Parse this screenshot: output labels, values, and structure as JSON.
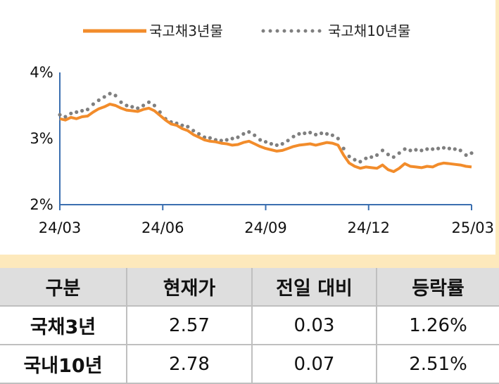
{
  "chart_data": {
    "type": "line",
    "legend": [
      "국고채3년물",
      "국고채10년물"
    ],
    "legend_position": "top",
    "x_ticks": [
      "24/03",
      "24/06",
      "24/09",
      "24/12",
      "25/03"
    ],
    "y_ticks": [
      "4%",
      "3%",
      "2%"
    ],
    "ylim": [
      2,
      4
    ],
    "x_range": [
      "2024-03",
      "2025-03"
    ],
    "grid": false,
    "series": [
      {
        "name": "국고채3년물",
        "color": "#f28c2b",
        "style": "solid",
        "values": [
          3.3,
          3.28,
          3.32,
          3.3,
          3.33,
          3.34,
          3.4,
          3.45,
          3.48,
          3.52,
          3.5,
          3.46,
          3.43,
          3.42,
          3.41,
          3.44,
          3.46,
          3.42,
          3.35,
          3.28,
          3.22,
          3.2,
          3.15,
          3.12,
          3.06,
          3.02,
          2.98,
          2.96,
          2.95,
          2.93,
          2.92,
          2.9,
          2.91,
          2.94,
          2.96,
          2.92,
          2.88,
          2.85,
          2.83,
          2.81,
          2.82,
          2.85,
          2.88,
          2.9,
          2.91,
          2.92,
          2.9,
          2.92,
          2.94,
          2.93,
          2.9,
          2.75,
          2.63,
          2.58,
          2.55,
          2.57,
          2.56,
          2.55,
          2.6,
          2.53,
          2.5,
          2.55,
          2.62,
          2.58,
          2.57,
          2.56,
          2.58,
          2.57,
          2.61,
          2.63,
          2.62,
          2.61,
          2.6,
          2.58,
          2.57
        ]
      },
      {
        "name": "국고채10년물",
        "color": "#7f7f7f",
        "style": "dotted",
        "values": [
          3.36,
          3.33,
          3.38,
          3.4,
          3.42,
          3.44,
          3.52,
          3.58,
          3.63,
          3.68,
          3.65,
          3.55,
          3.5,
          3.48,
          3.46,
          3.5,
          3.55,
          3.5,
          3.4,
          3.3,
          3.25,
          3.23,
          3.2,
          3.18,
          3.12,
          3.07,
          3.02,
          3.01,
          2.98,
          2.97,
          2.98,
          3.0,
          3.02,
          3.07,
          3.1,
          3.05,
          2.98,
          2.95,
          2.92,
          2.9,
          2.92,
          2.97,
          3.03,
          3.07,
          3.08,
          3.09,
          3.06,
          3.08,
          3.07,
          3.05,
          3.0,
          2.85,
          2.73,
          2.68,
          2.65,
          2.7,
          2.72,
          2.75,
          2.82,
          2.76,
          2.72,
          2.78,
          2.84,
          2.82,
          2.83,
          2.82,
          2.84,
          2.84,
          2.85,
          2.86,
          2.85,
          2.84,
          2.82,
          2.75,
          2.78
        ]
      }
    ]
  },
  "table": {
    "headers": [
      "구분",
      "현재가",
      "전일 대비",
      "등락률"
    ],
    "rows": [
      {
        "label": "국채3년",
        "price": "2.57",
        "change": "0.03",
        "rate": "1.26%"
      },
      {
        "label": "국내10년",
        "price": "2.78",
        "change": "0.07",
        "rate": "2.51%"
      }
    ]
  }
}
